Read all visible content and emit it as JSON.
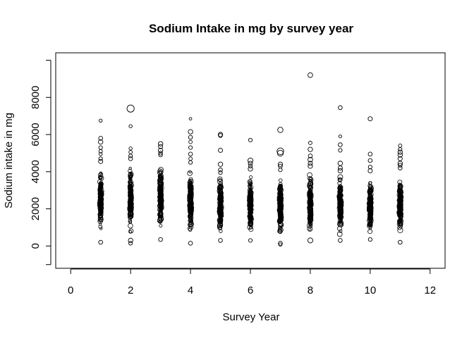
{
  "chart_data": {
    "type": "scatter",
    "title": "Sodium Intake in mg by survey year",
    "xlabel": "Survey Year",
    "ylabel": "Sodium intake in mg",
    "xlim": [
      -0.5,
      12.5
    ],
    "ylim": [
      -1200,
      10400
    ],
    "x_ticks": [
      0,
      2,
      4,
      6,
      8,
      10,
      12
    ],
    "y_ticks": [
      0,
      2000,
      4000,
      6000,
      8000
    ],
    "y_minor_ticks": [
      -1000,
      10000
    ],
    "grid": false,
    "legend": "none",
    "marker": "open-circle",
    "marker_color": "#000000",
    "columns": [
      {
        "x": 1,
        "dense_min": 500,
        "dense_max": 4300,
        "outliers": [
          [
            6750,
            0.5
          ],
          [
            5800,
            0.8
          ],
          [
            5600,
            1.0
          ],
          [
            5300,
            0.7
          ],
          [
            5100,
            0.6
          ],
          [
            4950,
            0.5
          ],
          [
            4700,
            0.7
          ],
          [
            4550,
            0.9
          ],
          [
            200,
            0.8
          ]
        ]
      },
      {
        "x": 2,
        "dense_min": 500,
        "dense_max": 4500,
        "outliers": [
          [
            7400,
            2.0
          ],
          [
            6450,
            0.5
          ],
          [
            5250,
            0.5
          ],
          [
            5050,
            0.6
          ],
          [
            4850,
            0.7
          ],
          [
            4700,
            0.8
          ],
          [
            300,
            1.0
          ],
          [
            150,
            0.7
          ]
        ]
      },
      {
        "x": 3,
        "dense_min": 500,
        "dense_max": 4700,
        "outliers": [
          [
            5500,
            1.0
          ],
          [
            5350,
            0.9
          ],
          [
            5150,
            1.0
          ],
          [
            5000,
            0.8
          ],
          [
            4900,
            0.7
          ],
          [
            350,
            0.8
          ]
        ]
      },
      {
        "x": 4,
        "dense_min": 400,
        "dense_max": 4300,
        "outliers": [
          [
            6850,
            0.3
          ],
          [
            6150,
            1.0
          ],
          [
            5850,
            0.8
          ],
          [
            5600,
            0.6
          ],
          [
            5300,
            0.7
          ],
          [
            4950,
            0.8
          ],
          [
            4700,
            0.6
          ],
          [
            4500,
            0.7
          ],
          [
            150,
            0.8
          ]
        ]
      },
      {
        "x": 5,
        "dense_min": 500,
        "dense_max": 3800,
        "outliers": [
          [
            6000,
            1.0
          ],
          [
            5950,
            0.8
          ],
          [
            5150,
            0.9
          ],
          [
            4400,
            1.0
          ],
          [
            4100,
            0.8
          ],
          [
            3950,
            0.7
          ],
          [
            300,
            0.8
          ]
        ]
      },
      {
        "x": 6,
        "dense_min": 500,
        "dense_max": 4000,
        "outliers": [
          [
            5700,
            0.7
          ],
          [
            4600,
            1.2
          ],
          [
            4450,
            0.9
          ],
          [
            4300,
            0.7
          ],
          [
            4150,
            1.0
          ],
          [
            300,
            0.7
          ]
        ]
      },
      {
        "x": 7,
        "dense_min": 400,
        "dense_max": 3900,
        "outliers": [
          [
            6250,
            1.3
          ],
          [
            5100,
            1.8
          ],
          [
            5000,
            1.5
          ],
          [
            4400,
            1.0
          ],
          [
            4300,
            0.8
          ],
          [
            4100,
            0.7
          ],
          [
            150,
            0.8
          ],
          [
            80,
            0.6
          ]
        ]
      },
      {
        "x": 8,
        "dense_min": 500,
        "dense_max": 4000,
        "outliers": [
          [
            9200,
            1.1
          ],
          [
            5550,
            0.6
          ],
          [
            5200,
            1.0
          ],
          [
            4850,
            0.8
          ],
          [
            4650,
            1.1
          ],
          [
            4450,
            0.9
          ],
          [
            4300,
            1.0
          ],
          [
            300,
            1.2
          ]
        ]
      },
      {
        "x": 9,
        "dense_min": 500,
        "dense_max": 3900,
        "outliers": [
          [
            7450,
            0.8
          ],
          [
            5900,
            0.4
          ],
          [
            5450,
            0.8
          ],
          [
            5150,
            0.7
          ],
          [
            4450,
            1.0
          ],
          [
            4200,
            0.9
          ],
          [
            4050,
            1.0
          ],
          [
            300,
            0.8
          ]
        ]
      },
      {
        "x": 10,
        "dense_min": 500,
        "dense_max": 3800,
        "outliers": [
          [
            6850,
            0.9
          ],
          [
            4950,
            0.8
          ],
          [
            4600,
            0.8
          ],
          [
            4250,
            0.7
          ],
          [
            4050,
            0.9
          ],
          [
            350,
            0.7
          ]
        ]
      },
      {
        "x": 11,
        "dense_min": 400,
        "dense_max": 4000,
        "outliers": [
          [
            5400,
            0.6
          ],
          [
            5200,
            0.7
          ],
          [
            5050,
            1.0
          ],
          [
            4900,
            1.0
          ],
          [
            4700,
            0.9
          ],
          [
            4450,
            1.0
          ],
          [
            4350,
            0.8
          ],
          [
            4200,
            0.8
          ],
          [
            200,
            0.8
          ]
        ]
      }
    ]
  }
}
